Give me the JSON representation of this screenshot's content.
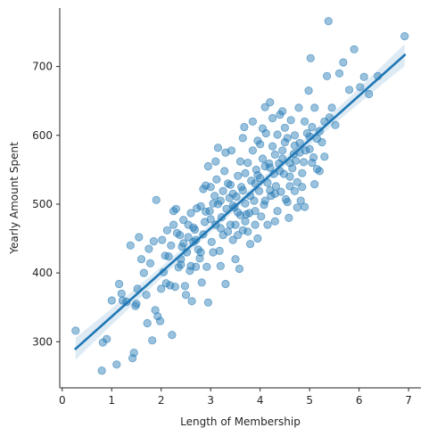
{
  "chart_data": {
    "type": "scatter",
    "title": "",
    "xlabel": "Length of Membership",
    "ylabel": "Yearly Amount Spent",
    "xlim": [
      -0.05,
      7.25
    ],
    "ylim": [
      233,
      785
    ],
    "xticks": [
      0,
      1,
      2,
      3,
      4,
      5,
      6,
      7
    ],
    "xtick_labels": [
      "0",
      "1",
      "2",
      "3",
      "4",
      "5",
      "6",
      "7"
    ],
    "yticks": [
      300,
      400,
      500,
      600,
      700
    ],
    "ytick_labels": [
      "300",
      "400",
      "500",
      "600",
      "700"
    ],
    "grid": false,
    "legend": "none",
    "colors": {
      "points": "#1f77b4",
      "line": "#1f77b4",
      "band": "#1f77b4"
    },
    "point_alpha": 0.45,
    "regression": {
      "x_range": [
        0.27,
        6.92
      ],
      "intercept": 272.4,
      "slope": 64.2,
      "ci_half_width_ends": 16,
      "ci_half_width_center": 6
    },
    "points": [
      [
        0.27,
        316
      ],
      [
        0.8,
        258
      ],
      [
        0.82,
        299
      ],
      [
        0.9,
        304
      ],
      [
        1.0,
        360
      ],
      [
        1.1,
        267
      ],
      [
        1.15,
        384
      ],
      [
        1.2,
        370
      ],
      [
        1.22,
        360
      ],
      [
        1.3,
        358
      ],
      [
        1.38,
        440
      ],
      [
        1.42,
        276
      ],
      [
        1.45,
        284
      ],
      [
        1.48,
        352
      ],
      [
        1.5,
        355
      ],
      [
        1.52,
        377
      ],
      [
        1.55,
        452
      ],
      [
        1.6,
        420
      ],
      [
        1.65,
        400
      ],
      [
        1.7,
        368
      ],
      [
        1.72,
        327
      ],
      [
        1.75,
        435
      ],
      [
        1.78,
        414
      ],
      [
        1.82,
        302
      ],
      [
        1.85,
        446
      ],
      [
        1.88,
        346
      ],
      [
        1.9,
        506
      ],
      [
        1.93,
        337
      ],
      [
        1.98,
        330
      ],
      [
        2.0,
        377
      ],
      [
        2.02,
        448
      ],
      [
        2.05,
        401
      ],
      [
        2.08,
        425
      ],
      [
        2.1,
        385
      ],
      [
        2.12,
        462
      ],
      [
        2.15,
        424
      ],
      [
        2.18,
        382
      ],
      [
        2.2,
        440
      ],
      [
        2.22,
        310
      ],
      [
        2.25,
        470
      ],
      [
        2.28,
        380
      ],
      [
        2.3,
        493
      ],
      [
        2.32,
        458
      ],
      [
        2.35,
        408
      ],
      [
        2.38,
        455
      ],
      [
        2.4,
        412
      ],
      [
        2.42,
        438
      ],
      [
        2.45,
        477
      ],
      [
        2.48,
        381
      ],
      [
        2.5,
        368
      ],
      [
        2.52,
        430
      ],
      [
        2.55,
        452
      ],
      [
        2.58,
        403
      ],
      [
        2.6,
        487
      ],
      [
        2.62,
        359
      ],
      [
        2.65,
        445
      ],
      [
        2.68,
        463
      ],
      [
        2.7,
        409
      ],
      [
        2.72,
        494
      ],
      [
        2.75,
        434
      ],
      [
        2.78,
        421
      ],
      [
        2.8,
        497
      ],
      [
        2.82,
        386
      ],
      [
        2.85,
        456
      ],
      [
        2.88,
        474
      ],
      [
        2.9,
        527
      ],
      [
        2.92,
        409
      ],
      [
        2.95,
        357
      ],
      [
        2.98,
        490
      ],
      [
        3.0,
        525
      ],
      [
        3.02,
        445
      ],
      [
        3.05,
        501
      ],
      [
        3.08,
        512
      ],
      [
        3.1,
        470
      ],
      [
        3.12,
        536
      ],
      [
        3.15,
        582
      ],
      [
        3.18,
        432
      ],
      [
        3.2,
        465
      ],
      [
        3.22,
        481
      ],
      [
        3.25,
        519
      ],
      [
        3.28,
        548
      ],
      [
        3.3,
        384
      ],
      [
        3.32,
        493
      ],
      [
        3.35,
        460
      ],
      [
        3.38,
        509
      ],
      [
        3.4,
        528
      ],
      [
        3.42,
        578
      ],
      [
        3.45,
        448
      ],
      [
        3.48,
        495
      ],
      [
        3.5,
        470
      ],
      [
        3.52,
        511
      ],
      [
        3.55,
        541
      ],
      [
        3.58,
        406
      ],
      [
        3.6,
        484
      ],
      [
        3.62,
        525
      ],
      [
        3.65,
        462
      ],
      [
        3.68,
        612
      ],
      [
        3.7,
        501
      ],
      [
        3.72,
        485
      ],
      [
        3.75,
        560
      ],
      [
        3.78,
        487
      ],
      [
        3.8,
        442
      ],
      [
        3.82,
        534
      ],
      [
        3.85,
        578
      ],
      [
        3.88,
        505
      ],
      [
        3.9,
        470
      ],
      [
        3.92,
        550
      ],
      [
        3.95,
        592
      ],
      [
        3.98,
        519
      ],
      [
        4.0,
        538
      ],
      [
        4.02,
        482
      ],
      [
        4.05,
        566
      ],
      [
        4.08,
        499
      ],
      [
        4.1,
        641
      ],
      [
        4.12,
        603
      ],
      [
        4.15,
        531
      ],
      [
        4.18,
        559
      ],
      [
        4.2,
        648
      ],
      [
        4.22,
        512
      ],
      [
        4.25,
        584
      ],
      [
        4.28,
        544
      ],
      [
        4.3,
        475
      ],
      [
        4.32,
        526
      ],
      [
        4.35,
        601
      ],
      [
        4.38,
        559
      ],
      [
        4.4,
        630
      ],
      [
        4.42,
        518
      ],
      [
        4.45,
        578
      ],
      [
        4.48,
        544
      ],
      [
        4.5,
        611
      ],
      [
        4.52,
        507
      ],
      [
        4.55,
        596
      ],
      [
        4.58,
        480
      ],
      [
        4.6,
        526
      ],
      [
        4.62,
        622
      ],
      [
        4.65,
        552
      ],
      [
        4.68,
        573
      ],
      [
        4.7,
        519
      ],
      [
        4.72,
        563
      ],
      [
        4.75,
        532
      ],
      [
        4.78,
        640
      ],
      [
        4.8,
        589
      ],
      [
        4.82,
        505
      ],
      [
        4.85,
        545
      ],
      [
        4.88,
        561
      ],
      [
        4.9,
        496
      ],
      [
        4.92,
        578
      ],
      [
        4.95,
        603
      ],
      [
        4.98,
        665
      ],
      [
        5.0,
        598
      ],
      [
        5.02,
        712
      ],
      [
        5.05,
        612
      ],
      [
        5.08,
        568
      ],
      [
        5.1,
        529
      ],
      [
        5.15,
        551
      ],
      [
        5.2,
        606
      ],
      [
        5.25,
        590
      ],
      [
        5.3,
        569
      ],
      [
        5.35,
        686
      ],
      [
        5.38,
        766
      ],
      [
        5.4,
        626
      ],
      [
        5.45,
        640
      ],
      [
        5.52,
        615
      ],
      [
        5.6,
        690
      ],
      [
        5.68,
        706
      ],
      [
        5.8,
        666
      ],
      [
        5.9,
        725
      ],
      [
        6.02,
        670
      ],
      [
        6.1,
        685
      ],
      [
        6.2,
        660
      ],
      [
        6.38,
        686
      ],
      [
        6.92,
        744
      ],
      [
        2.25,
        490
      ],
      [
        2.4,
        420
      ],
      [
        2.55,
        470
      ],
      [
        2.7,
        448
      ],
      [
        2.85,
        522
      ],
      [
        3.0,
        478
      ],
      [
        3.15,
        500
      ],
      [
        3.25,
        455
      ],
      [
        3.35,
        530
      ],
      [
        3.45,
        515
      ],
      [
        3.55,
        488
      ],
      [
        3.6,
        562
      ],
      [
        3.7,
        545
      ],
      [
        3.8,
        512
      ],
      [
        3.9,
        530
      ],
      [
        4.0,
        587
      ],
      [
        4.1,
        555
      ],
      [
        4.2,
        520
      ],
      [
        4.3,
        572
      ],
      [
        4.4,
        548
      ],
      [
        4.5,
        590
      ],
      [
        4.6,
        560
      ],
      [
        4.7,
        600
      ],
      [
        4.8,
        575
      ],
      [
        4.9,
        620
      ],
      [
        5.0,
        580
      ],
      [
        5.1,
        640
      ],
      [
        5.2,
        548
      ],
      [
        3.05,
        430
      ],
      [
        3.2,
        410
      ],
      [
        3.5,
        420
      ],
      [
        3.75,
        460
      ],
      [
        3.95,
        450
      ],
      [
        4.15,
        470
      ],
      [
        4.35,
        490
      ],
      [
        4.55,
        503
      ],
      [
        4.75,
        495
      ],
      [
        2.95,
        555
      ],
      [
        3.1,
        562
      ],
      [
        3.3,
        575
      ],
      [
        3.65,
        596
      ],
      [
        3.85,
        620
      ],
      [
        4.05,
        610
      ],
      [
        4.25,
        625
      ],
      [
        4.45,
        635
      ],
      [
        2.6,
        410
      ],
      [
        2.8,
        430
      ],
      [
        3.4,
        470
      ],
      [
        3.55,
        455
      ],
      [
        3.7,
        475
      ],
      [
        3.9,
        490
      ],
      [
        4.1,
        505
      ],
      [
        4.3,
        515
      ],
      [
        4.6,
        540
      ],
      [
        4.85,
        525
      ],
      [
        5.05,
        560
      ],
      [
        2.45,
        443
      ],
      [
        2.65,
        466
      ],
      [
        2.9,
        489
      ],
      [
        3.2,
        505
      ],
      [
        3.45,
        498
      ],
      [
        3.65,
        520
      ],
      [
        3.95,
        542
      ],
      [
        4.2,
        553
      ],
      [
        4.45,
        566
      ],
      [
        4.7,
        585
      ],
      [
        5.15,
        595
      ],
      [
        5.3,
        620
      ]
    ]
  }
}
